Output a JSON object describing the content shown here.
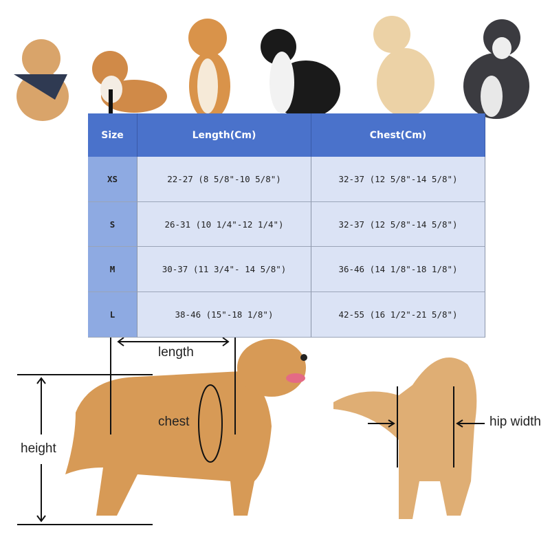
{
  "size_chart": {
    "headers": [
      "Size",
      "Length(Cm)",
      "Chest(Cm)"
    ],
    "rows": [
      {
        "size": "XS",
        "length": "22-27 (8 5/8\"-10 5/8\")",
        "chest": "32-37 (12 5/8\"-14 5/8\")"
      },
      {
        "size": "S",
        "length": "26-31 (10 1/4\"-12 1/4\")",
        "chest": "32-37 (12 5/8\"-14 5/8\")"
      },
      {
        "size": "M",
        "length": "30-37 (11 3/4\"- 14 5/8\")",
        "chest": "36-46 (14 1/8\"-18 1/8\")"
      },
      {
        "size": "L",
        "length": "38-46 (15\"-18 1/8\")",
        "chest": "42-55 (16 1/2\"-21 5/8\")"
      }
    ],
    "colors": {
      "header": "#4a72cb",
      "size_column": "#8eaae2",
      "cells": "#dbe3f5"
    }
  },
  "measurement_labels": {
    "length": "length",
    "chest": "chest",
    "height": "height",
    "hip_width": "hip width"
  }
}
